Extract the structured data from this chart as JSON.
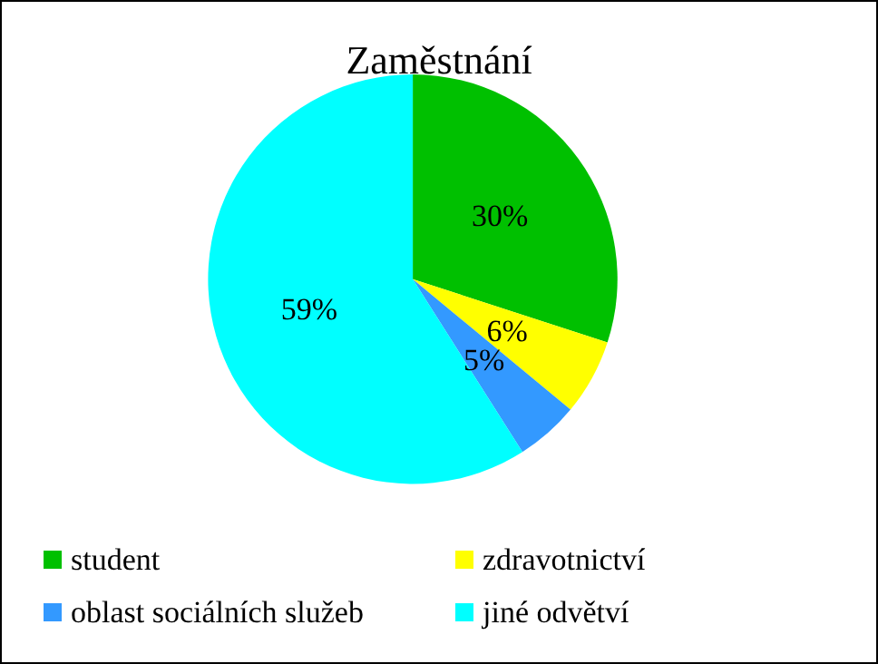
{
  "chart_data": {
    "type": "pie",
    "title": "Zaměstnání",
    "categories": [
      "student",
      "zdravotnictví",
      "oblast sociálních služeb",
      "jiné odvětví"
    ],
    "values": [
      30,
      6,
      5,
      59
    ],
    "colors": [
      "#00c000",
      "#ffff00",
      "#3399ff",
      "#00ffff"
    ],
    "value_labels": [
      "30%",
      "6%",
      "5%",
      "59%"
    ],
    "legend": "bottom"
  }
}
